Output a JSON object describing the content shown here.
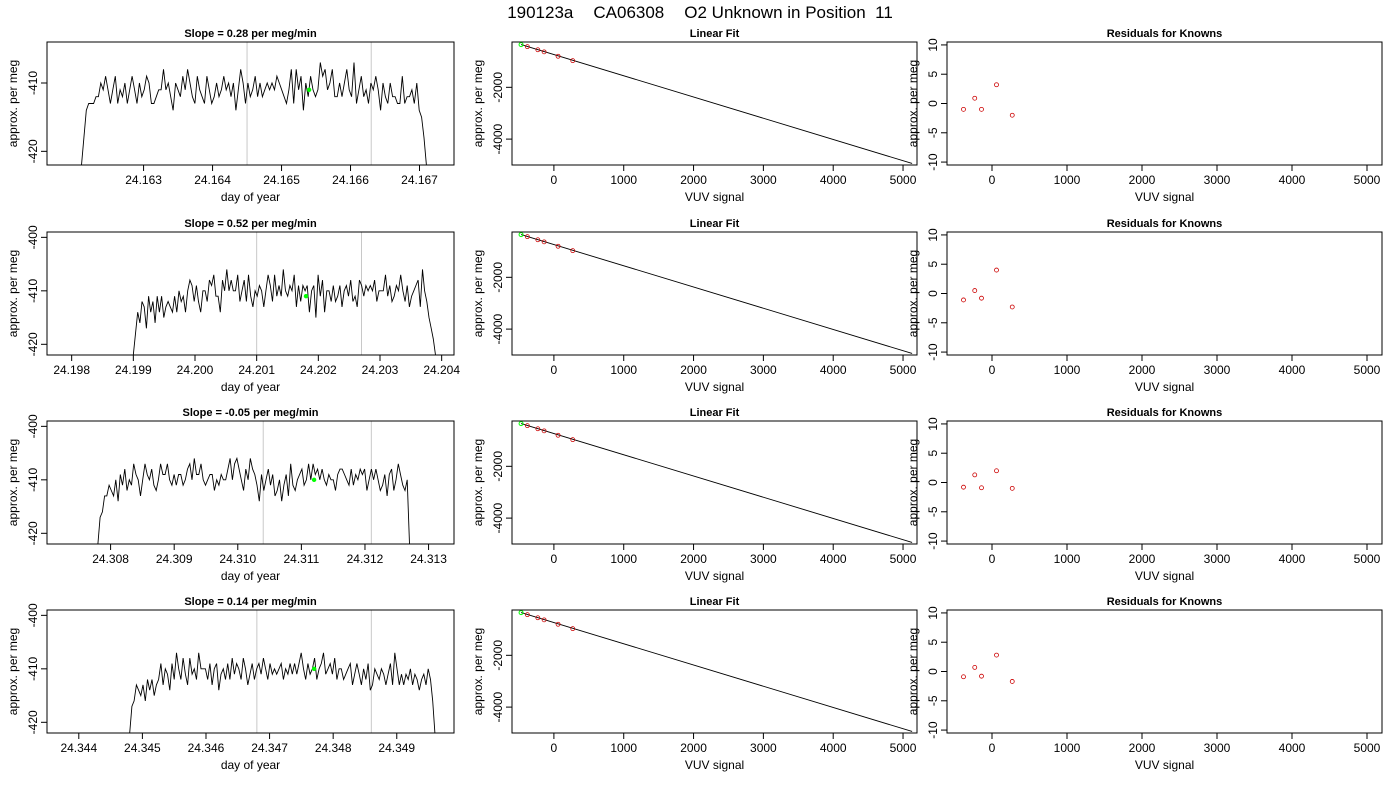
{
  "header": {
    "run_id": "190123a",
    "tank_id": "CA06308",
    "description": "O2 Unknown in Position  11"
  },
  "colors": {
    "trace": "#000000",
    "marker": "#00ff00",
    "known_points": "#cc0000",
    "guide_lines": "#c8c8c8",
    "fit_line": "#000000"
  },
  "chart_data": [
    {
      "panel": "row1-timeseries",
      "type": "line",
      "title": "Slope =  0.28  per meg/min",
      "xlabel": "day of year",
      "ylabel": "approx. per meg",
      "xlim": [
        24.1616,
        24.1675
      ],
      "ylim": [
        -422,
        -404
      ],
      "xticks": [
        "24.163",
        "24.164",
        "24.165",
        "24.166",
        "24.167"
      ],
      "xtick_values": [
        24.163,
        24.164,
        24.165,
        24.166,
        24.167
      ],
      "yticks": [
        "-420",
        "-410"
      ],
      "ytick_values": [
        -420,
        -410
      ],
      "vlines": [
        24.1645,
        24.1663
      ],
      "series_x_range": [
        24.1621,
        24.1671
      ],
      "trace_y": [
        -422,
        -418,
        -414,
        -413,
        -413,
        -413,
        -412,
        -412,
        -410,
        -411,
        -409,
        -411,
        -413,
        -411,
        -409,
        -413,
        -411,
        -412,
        -410,
        -413,
        -411,
        -409,
        -411,
        -413,
        -410,
        -412,
        -411,
        -409,
        -410,
        -413,
        -413,
        -412,
        -411,
        -411,
        -408,
        -411,
        -410,
        -412,
        -414,
        -410,
        -411,
        -412,
        -409,
        -411,
        -408,
        -410,
        -412,
        -413,
        -409,
        -411,
        -412,
        -413,
        -409,
        -411,
        -413,
        -412,
        -410,
        -412,
        -411,
        -409,
        -411,
        -410,
        -412,
        -410,
        -414,
        -411,
        -408,
        -410,
        -413,
        -410,
        -412,
        -411,
        -409,
        -412,
        -410,
        -412,
        -411,
        -410,
        -411,
        -410,
        -411,
        -409,
        -410,
        -411,
        -412,
        -413,
        -411,
        -408,
        -413,
        -408,
        -411,
        -409,
        -414,
        -410,
        -412,
        -409,
        -411,
        -412,
        -411,
        -407,
        -409,
        -408,
        -411,
        -410,
        -408,
        -412,
        -412,
        -410,
        -412,
        -410,
        -408,
        -411,
        -412,
        -407,
        -413,
        -411,
        -409,
        -412,
        -411,
        -413,
        -410,
        -411,
        -409,
        -411,
        -414,
        -410,
        -412,
        -413,
        -410,
        -412,
        -412,
        -413,
        -413,
        -409,
        -413,
        -412,
        -412,
        -411,
        -413,
        -410,
        -414,
        -415,
        -418,
        -422
      ],
      "marker": {
        "x": 24.1654,
        "y": -411
      }
    },
    {
      "panel": "row1-fit",
      "type": "scatter",
      "title": "Linear Fit",
      "xlabel": "VUV signal",
      "ylabel": "approx. per meg",
      "xlim": [
        -600,
        5200
      ],
      "ylim": [
        -5000,
        -250
      ],
      "xticks": [
        "0",
        "1000",
        "2000",
        "3000",
        "4000",
        "5000"
      ],
      "xtick_values": [
        0,
        1000,
        2000,
        3000,
        4000,
        5000
      ],
      "yticks": [
        "-4000",
        "-2000"
      ],
      "ytick_values": [
        -4000,
        -2000
      ],
      "fit_line": {
        "x": [
          -470,
          5130
        ],
        "y": [
          -350,
          -4940
        ]
      },
      "knowns": {
        "x": [
          -380,
          -230,
          -140,
          60,
          270
        ],
        "y": [
          -430,
          -550,
          -630,
          -800,
          -970
        ]
      },
      "unknown": {
        "x": -470,
        "y": -350
      }
    },
    {
      "panel": "row1-residuals",
      "type": "scatter",
      "title": "Residuals for Knowns",
      "xlabel": "VUV signal",
      "ylabel": "approx. per meg",
      "xlim": [
        -600,
        5200
      ],
      "ylim": [
        -10.5,
        10.5
      ],
      "xticks": [
        "0",
        "1000",
        "2000",
        "3000",
        "4000",
        "5000"
      ],
      "xtick_values": [
        0,
        1000,
        2000,
        3000,
        4000,
        5000
      ],
      "yticks": [
        "-10",
        "-5",
        "0",
        "5",
        "10"
      ],
      "ytick_values": [
        -10,
        -5,
        0,
        5,
        10
      ],
      "x": [
        -380,
        -230,
        -140,
        60,
        270
      ],
      "y": [
        -1.0,
        0.9,
        -1.0,
        3.2,
        -2.0
      ]
    },
    {
      "panel": "row2-timeseries",
      "type": "line",
      "title": "Slope =  0.52  per meg/min",
      "xlabel": "day of year",
      "ylabel": "approx. per meg",
      "xlim": [
        24.1976,
        24.2042
      ],
      "ylim": [
        -422,
        -399
      ],
      "xticks": [
        "24.198",
        "24.199",
        "24.200",
        "24.201",
        "24.202",
        "24.203",
        "24.204"
      ],
      "xtick_values": [
        24.198,
        24.199,
        24.2,
        24.201,
        24.202,
        24.203,
        24.204
      ],
      "yticks": [
        "-420",
        "-410",
        "-400"
      ],
      "ytick_values": [
        -420,
        -410,
        -400
      ],
      "vlines": [
        24.201,
        24.2027
      ],
      "series_x_range": [
        24.199,
        24.2039
      ],
      "trace_y": [
        -422,
        -418,
        -414,
        -416,
        -412,
        -413,
        -417,
        -411,
        -414,
        -412,
        -416,
        -411,
        -414,
        -411,
        -415,
        -413,
        -412,
        -413,
        -414,
        -411,
        -414,
        -410,
        -412,
        -411,
        -414,
        -410,
        -408,
        -409,
        -412,
        -409,
        -412,
        -414,
        -410,
        -410,
        -412,
        -408,
        -409,
        -407,
        -411,
        -411,
        -414,
        -408,
        -410,
        -406,
        -410,
        -408,
        -410,
        -410,
        -407,
        -412,
        -410,
        -408,
        -412,
        -407,
        -411,
        -413,
        -410,
        -411,
        -409,
        -410,
        -413,
        -410,
        -407,
        -409,
        -412,
        -407,
        -411,
        -409,
        -411,
        -406,
        -410,
        -411,
        -409,
        -410,
        -407,
        -413,
        -409,
        -412,
        -409,
        -410,
        -409,
        -414,
        -410,
        -409,
        -415,
        -407,
        -411,
        -408,
        -414,
        -410,
        -410,
        -412,
        -409,
        -412,
        -411,
        -409,
        -413,
        -410,
        -409,
        -411,
        -408,
        -412,
        -411,
        -413,
        -408,
        -409,
        -411,
        -409,
        -410,
        -409,
        -410,
        -408,
        -412,
        -410,
        -410,
        -410,
        -407,
        -411,
        -409,
        -412,
        -411,
        -409,
        -410,
        -407,
        -410,
        -412,
        -409,
        -413,
        -411,
        -410,
        -409,
        -408,
        -413,
        -406,
        -410,
        -412,
        -415,
        -417,
        -419,
        -422
      ],
      "marker": {
        "x": 24.2018,
        "y": -411
      }
    },
    {
      "panel": "row2-fit",
      "type": "scatter",
      "title": "Linear Fit",
      "xlabel": "VUV signal",
      "ylabel": "approx. per meg",
      "xlim": [
        -600,
        5200
      ],
      "ylim": [
        -5000,
        -250
      ],
      "xticks": [
        "0",
        "1000",
        "2000",
        "3000",
        "4000",
        "5000"
      ],
      "xtick_values": [
        0,
        1000,
        2000,
        3000,
        4000,
        5000
      ],
      "yticks": [
        "-4000",
        "-2000"
      ],
      "ytick_values": [
        -4000,
        -2000
      ],
      "fit_line": {
        "x": [
          -470,
          5130
        ],
        "y": [
          -350,
          -4940
        ]
      },
      "knowns": {
        "x": [
          -380,
          -230,
          -140,
          60,
          270
        ],
        "y": [
          -430,
          -550,
          -630,
          -800,
          -970
        ]
      },
      "unknown": {
        "x": -470,
        "y": -350
      }
    },
    {
      "panel": "row2-residuals",
      "type": "scatter",
      "title": "Residuals for Knowns",
      "xlabel": "VUV signal",
      "ylabel": "approx. per meg",
      "xlim": [
        -600,
        5200
      ],
      "ylim": [
        -10.5,
        10.5
      ],
      "xticks": [
        "0",
        "1000",
        "2000",
        "3000",
        "4000",
        "5000"
      ],
      "xtick_values": [
        0,
        1000,
        2000,
        3000,
        4000,
        5000
      ],
      "yticks": [
        "-10",
        "-5",
        "0",
        "5",
        "10"
      ],
      "ytick_values": [
        -10,
        -5,
        0,
        5,
        10
      ],
      "x": [
        -380,
        -230,
        -140,
        60,
        270
      ],
      "y": [
        -1.1,
        0.5,
        -0.8,
        4.0,
        -2.3
      ]
    },
    {
      "panel": "row3-timeseries",
      "type": "line",
      "title": "Slope =  -0.05  per meg/min",
      "xlabel": "day of year",
      "ylabel": "approx. per meg",
      "xlim": [
        24.307,
        24.3134
      ],
      "ylim": [
        -422,
        -399
      ],
      "xticks": [
        "24.308",
        "24.309",
        "24.310",
        "24.311",
        "24.312",
        "24.313"
      ],
      "xtick_values": [
        24.308,
        24.309,
        24.31,
        24.311,
        24.312,
        24.313
      ],
      "yticks": [
        "-420",
        "-410",
        "-400"
      ],
      "ytick_values": [
        -420,
        -410,
        -400
      ],
      "vlines": [
        24.3104,
        24.3121
      ],
      "series_x_range": [
        24.3078,
        24.3127
      ],
      "trace_y": [
        -422,
        -417,
        -416,
        -413,
        -413,
        -411,
        -412,
        -413,
        -410,
        -414,
        -409,
        -411,
        -408,
        -412,
        -410,
        -411,
        -407,
        -409,
        -410,
        -413,
        -410,
        -407,
        -409,
        -410,
        -408,
        -411,
        -412,
        -410,
        -407,
        -409,
        -409,
        -407,
        -410,
        -411,
        -409,
        -411,
        -409,
        -409,
        -411,
        -410,
        -408,
        -407,
        -410,
        -406,
        -409,
        -409,
        -407,
        -410,
        -411,
        -410,
        -409,
        -409,
        -412,
        -410,
        -411,
        -409,
        -410,
        -410,
        -408,
        -406,
        -410,
        -407,
        -406,
        -408,
        -410,
        -412,
        -408,
        -410,
        -406,
        -408,
        -409,
        -411,
        -414,
        -409,
        -412,
        -410,
        -408,
        -411,
        -409,
        -413,
        -412,
        -410,
        -414,
        -411,
        -409,
        -413,
        -407,
        -411,
        -412,
        -410,
        -409,
        -408,
        -411,
        -410,
        -407,
        -410,
        -407,
        -409,
        -408,
        -410,
        -408,
        -410,
        -411,
        -409,
        -410,
        -410,
        -412,
        -409,
        -408,
        -408,
        -409,
        -410,
        -411,
        -408,
        -411,
        -409,
        -410,
        -408,
        -409,
        -408,
        -412,
        -410,
        -408,
        -410,
        -408,
        -410,
        -412,
        -411,
        -409,
        -413,
        -409,
        -408,
        -412,
        -410,
        -407,
        -409,
        -411,
        -412,
        -410,
        -422
      ],
      "marker": {
        "x": 24.3112,
        "y": -410
      }
    },
    {
      "panel": "row3-fit",
      "type": "scatter",
      "title": "Linear Fit",
      "xlabel": "VUV signal",
      "ylabel": "approx. per meg",
      "xlim": [
        -600,
        5200
      ],
      "ylim": [
        -5000,
        -250
      ],
      "xticks": [
        "0",
        "1000",
        "2000",
        "3000",
        "4000",
        "5000"
      ],
      "xtick_values": [
        0,
        1000,
        2000,
        3000,
        4000,
        5000
      ],
      "yticks": [
        "-4000",
        "-2000"
      ],
      "ytick_values": [
        -4000,
        -2000
      ],
      "fit_line": {
        "x": [
          -470,
          5130
        ],
        "y": [
          -350,
          -4940
        ]
      },
      "knowns": {
        "x": [
          -380,
          -230,
          -140,
          60,
          270
        ],
        "y": [
          -430,
          -550,
          -630,
          -800,
          -970
        ]
      },
      "unknown": {
        "x": -470,
        "y": -350
      }
    },
    {
      "panel": "row3-residuals",
      "type": "scatter",
      "title": "Residuals for Knowns",
      "xlabel": "VUV signal",
      "ylabel": "approx. per meg",
      "xlim": [
        -600,
        5200
      ],
      "ylim": [
        -10.5,
        10.5
      ],
      "xticks": [
        "0",
        "1000",
        "2000",
        "3000",
        "4000",
        "5000"
      ],
      "xtick_values": [
        0,
        1000,
        2000,
        3000,
        4000,
        5000
      ],
      "yticks": [
        "-10",
        "-5",
        "0",
        "5",
        "10"
      ],
      "ytick_values": [
        -10,
        -5,
        0,
        5,
        10
      ],
      "x": [
        -380,
        -230,
        -140,
        60,
        270
      ],
      "y": [
        -0.8,
        1.3,
        -0.9,
        2.0,
        -1.0
      ]
    },
    {
      "panel": "row4-timeseries",
      "type": "line",
      "title": "Slope =  0.14  per meg/min",
      "xlabel": "day of year",
      "ylabel": "approx. per meg",
      "xlim": [
        24.3435,
        24.3499
      ],
      "ylim": [
        -422,
        -399
      ],
      "xticks": [
        "24.344",
        "24.345",
        "24.346",
        "24.347",
        "24.348",
        "24.349"
      ],
      "xtick_values": [
        24.344,
        24.345,
        24.346,
        24.347,
        24.348,
        24.349
      ],
      "yticks": [
        "-420",
        "-410",
        "-400"
      ],
      "ytick_values": [
        -420,
        -410,
        -400
      ],
      "vlines": [
        24.3468,
        24.3486
      ],
      "series_x_range": [
        24.3448,
        24.3496
      ],
      "trace_y": [
        -422,
        -417,
        -416,
        -413,
        -414,
        -415,
        -413,
        -416,
        -412,
        -414,
        -412,
        -415,
        -413,
        -412,
        -409,
        -413,
        -410,
        -411,
        -414,
        -409,
        -412,
        -407,
        -410,
        -412,
        -408,
        -411,
        -413,
        -408,
        -411,
        -410,
        -412,
        -407,
        -410,
        -410,
        -410,
        -412,
        -409,
        -413,
        -410,
        -409,
        -414,
        -411,
        -410,
        -412,
        -409,
        -412,
        -408,
        -411,
        -409,
        -410,
        -412,
        -408,
        -410,
        -413,
        -411,
        -409,
        -412,
        -410,
        -409,
        -411,
        -408,
        -410,
        -412,
        -409,
        -411,
        -410,
        -411,
        -410,
        -409,
        -412,
        -410,
        -411,
        -409,
        -411,
        -409,
        -411,
        -409,
        -407,
        -410,
        -412,
        -409,
        -411,
        -410,
        -408,
        -412,
        -410,
        -409,
        -407,
        -411,
        -410,
        -409,
        -411,
        -408,
        -412,
        -410,
        -410,
        -412,
        -411,
        -410,
        -409,
        -413,
        -411,
        -409,
        -411,
        -413,
        -410,
        -412,
        -409,
        -414,
        -413,
        -410,
        -411,
        -412,
        -410,
        -411,
        -413,
        -411,
        -409,
        -413,
        -407,
        -410,
        -413,
        -411,
        -413,
        -411,
        -412,
        -410,
        -413,
        -411,
        -412,
        -414,
        -412,
        -411,
        -413,
        -410,
        -412,
        -416,
        -422
      ],
      "marker": {
        "x": 24.3477,
        "y": -410
      }
    },
    {
      "panel": "row4-fit",
      "type": "scatter",
      "title": "Linear Fit",
      "xlabel": "VUV signal",
      "ylabel": "approx. per meg",
      "xlim": [
        -600,
        5200
      ],
      "ylim": [
        -5000,
        -250
      ],
      "xticks": [
        "0",
        "1000",
        "2000",
        "3000",
        "4000",
        "5000"
      ],
      "xtick_values": [
        0,
        1000,
        2000,
        3000,
        4000,
        5000
      ],
      "yticks": [
        "-4000",
        "-2000"
      ],
      "ytick_values": [
        -4000,
        -2000
      ],
      "fit_line": {
        "x": [
          -470,
          5130
        ],
        "y": [
          -350,
          -4940
        ]
      },
      "knowns": {
        "x": [
          -380,
          -230,
          -140,
          60,
          270
        ],
        "y": [
          -430,
          -550,
          -630,
          -800,
          -970
        ]
      },
      "unknown": {
        "x": -470,
        "y": -350
      }
    },
    {
      "panel": "row4-residuals",
      "type": "scatter",
      "title": "Residuals for Knowns",
      "xlabel": "VUV signal",
      "ylabel": "approx. per meg",
      "xlim": [
        -600,
        5200
      ],
      "ylim": [
        -10.5,
        10.5
      ],
      "xticks": [
        "0",
        "1000",
        "2000",
        "3000",
        "4000",
        "5000"
      ],
      "xtick_values": [
        0,
        1000,
        2000,
        3000,
        4000,
        5000
      ],
      "yticks": [
        "-10",
        "-5",
        "0",
        "5",
        "10"
      ],
      "ytick_values": [
        -10,
        -5,
        0,
        5,
        10
      ],
      "x": [
        -380,
        -230,
        -140,
        60,
        270
      ],
      "y": [
        -0.9,
        0.7,
        -0.8,
        2.8,
        -1.7
      ]
    }
  ]
}
